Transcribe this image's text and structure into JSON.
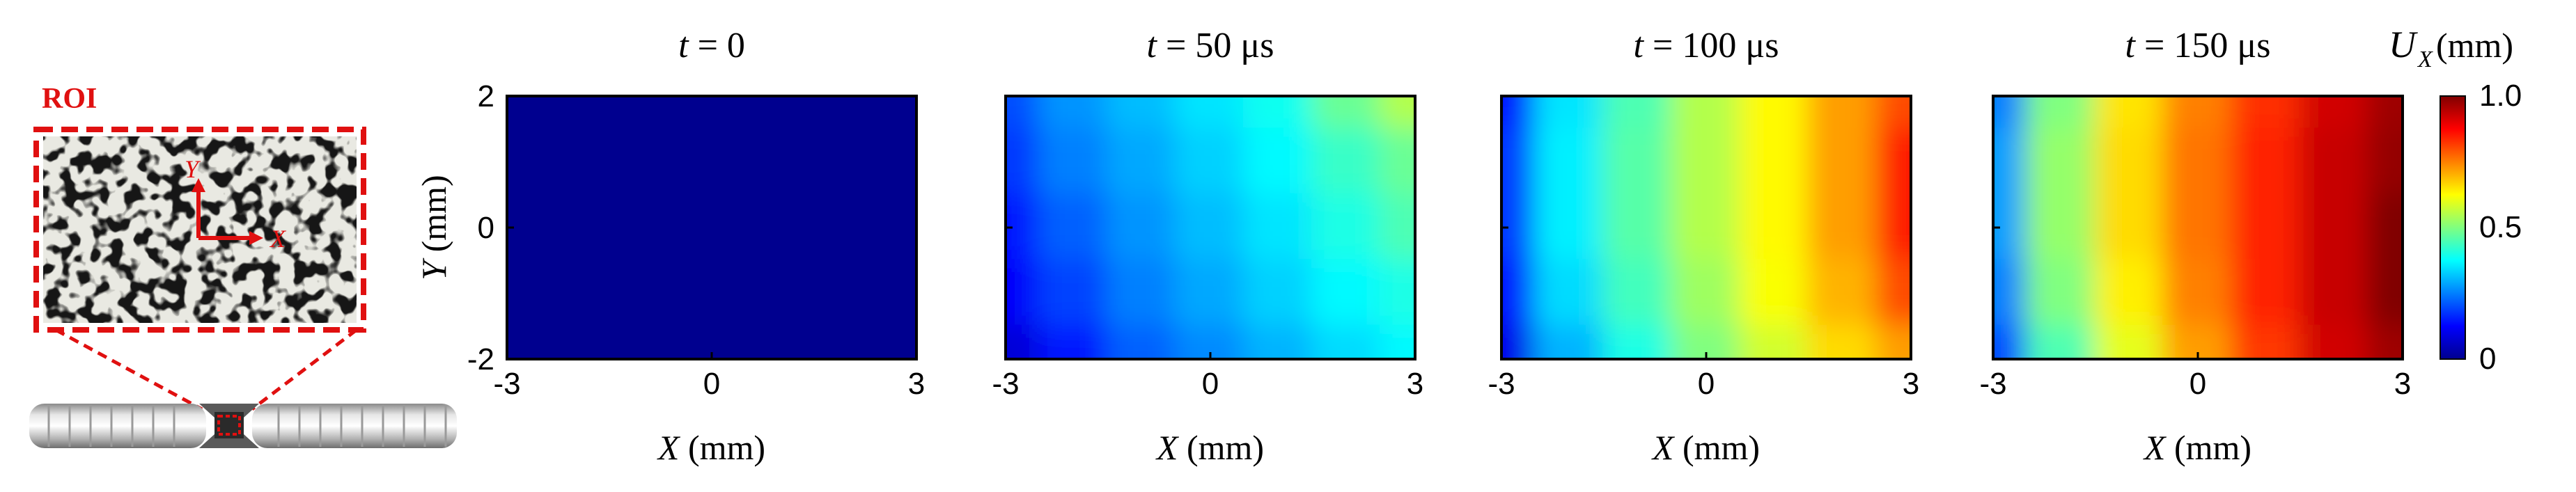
{
  "roi_inset": {
    "label": "ROI",
    "axis_y": "Y",
    "axis_x": "X",
    "accent_color": "#e01010"
  },
  "panels": [
    {
      "title_var": "t",
      "title_value": "= 0",
      "id": "t0"
    },
    {
      "title_var": "t",
      "title_value": "= 50 μs",
      "id": "t50"
    },
    {
      "title_var": "t",
      "title_value": "= 100 μs",
      "id": "t100"
    },
    {
      "title_var": "t",
      "title_value": "= 150 μs",
      "id": "t150"
    }
  ],
  "axes": {
    "xlabel_var": "X",
    "xlabel_unit": "(mm)",
    "ylabel_var": "Y",
    "ylabel_unit": "(mm)",
    "xticks": [
      "-3",
      "0",
      "3"
    ],
    "yticks": [
      "2",
      "0",
      "-2"
    ]
  },
  "colorbar": {
    "label_var": "U",
    "label_sub": "X",
    "label_unit": "(mm)",
    "ticks": [
      "1.0",
      "0.5",
      "0"
    ],
    "colormap": "jet"
  },
  "chart_data": [
    {
      "type": "heatmap",
      "title": "t = 0",
      "xlabel": "X (mm)",
      "ylabel": "Y (mm)",
      "xlim": [
        -3,
        3
      ],
      "ylim": [
        -2,
        2
      ],
      "clim": [
        0,
        1.0
      ],
      "x": [
        -3,
        -2,
        -1,
        0,
        1,
        2,
        3
      ],
      "y": [
        2,
        1,
        0,
        -1,
        -2
      ],
      "z": [
        [
          0,
          0,
          0,
          0,
          0,
          0,
          0
        ],
        [
          0,
          0,
          0,
          0,
          0,
          0,
          0
        ],
        [
          0,
          0,
          0,
          0,
          0,
          0,
          0
        ],
        [
          0,
          0,
          0,
          0,
          0,
          0,
          0
        ],
        [
          0,
          0,
          0,
          0,
          0,
          0,
          0
        ]
      ]
    },
    {
      "type": "heatmap",
      "title": "t = 50 μs",
      "xlabel": "X (mm)",
      "ylabel": "",
      "xlim": [
        -3,
        3
      ],
      "ylim": [
        -2,
        2
      ],
      "clim": [
        0,
        1.0
      ],
      "x": [
        -3,
        -2,
        -1,
        0,
        1,
        2,
        3
      ],
      "y": [
        2,
        1,
        0,
        -1,
        -2
      ],
      "z": [
        [
          0.2,
          0.27,
          0.31,
          0.35,
          0.39,
          0.48,
          0.55
        ],
        [
          0.18,
          0.25,
          0.29,
          0.33,
          0.37,
          0.43,
          0.48
        ],
        [
          0.15,
          0.22,
          0.27,
          0.31,
          0.35,
          0.4,
          0.45
        ],
        [
          0.12,
          0.19,
          0.25,
          0.29,
          0.33,
          0.37,
          0.4
        ],
        [
          0.08,
          0.15,
          0.22,
          0.26,
          0.3,
          0.34,
          0.37
        ]
      ]
    },
    {
      "type": "heatmap",
      "title": "t = 100 μs",
      "xlabel": "X (mm)",
      "ylabel": "",
      "xlim": [
        -3,
        3
      ],
      "ylim": [
        -2,
        2
      ],
      "clim": [
        0,
        1.0
      ],
      "x": [
        -3,
        -2,
        -1,
        0,
        1,
        2,
        3
      ],
      "y": [
        2,
        1,
        0,
        -1,
        -2
      ],
      "z": [
        [
          0.15,
          0.35,
          0.45,
          0.55,
          0.63,
          0.72,
          0.8
        ],
        [
          0.18,
          0.36,
          0.46,
          0.55,
          0.63,
          0.72,
          0.85
        ],
        [
          0.18,
          0.36,
          0.46,
          0.55,
          0.63,
          0.72,
          0.85
        ],
        [
          0.15,
          0.34,
          0.44,
          0.53,
          0.62,
          0.7,
          0.8
        ],
        [
          0.1,
          0.3,
          0.4,
          0.5,
          0.58,
          0.66,
          0.72
        ]
      ]
    },
    {
      "type": "heatmap",
      "title": "t = 150 μs",
      "xlabel": "X (mm)",
      "ylabel": "",
      "xlim": [
        -3,
        3
      ],
      "ylim": [
        -2,
        2
      ],
      "clim": [
        0,
        1.0
      ],
      "x": [
        -3,
        -2,
        -1,
        0,
        1,
        2,
        3
      ],
      "y": [
        2,
        1,
        0,
        -1,
        -2
      ],
      "z": [
        [
          0.25,
          0.5,
          0.65,
          0.75,
          0.83,
          0.92,
          0.97
        ],
        [
          0.28,
          0.52,
          0.66,
          0.76,
          0.84,
          0.93,
          0.98
        ],
        [
          0.28,
          0.52,
          0.66,
          0.76,
          0.84,
          0.93,
          1.0
        ],
        [
          0.25,
          0.5,
          0.64,
          0.75,
          0.84,
          0.93,
          1.0
        ],
        [
          0.2,
          0.45,
          0.6,
          0.72,
          0.82,
          0.92,
          0.97
        ]
      ]
    }
  ]
}
